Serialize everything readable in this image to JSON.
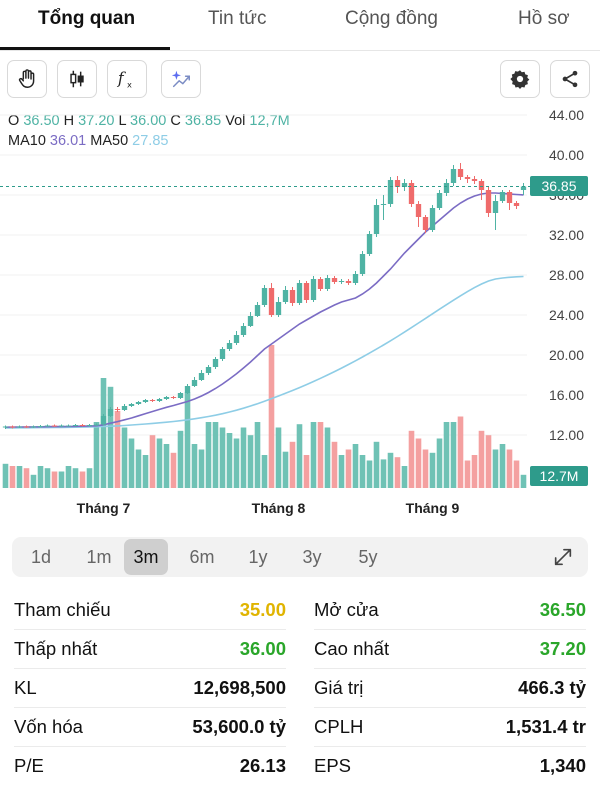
{
  "tabs": [
    "Tổng quan",
    "Tin tức",
    "Cộng đồng",
    "Hồ sơ"
  ],
  "active_tab": "Tổng quan",
  "toolbar": {
    "left": [
      "hand-pointer-icon",
      "candlestick-icon",
      "function-icon",
      "sparkle-chart-icon"
    ],
    "right": [
      "gear-icon",
      "share-icon"
    ]
  },
  "ohlc": {
    "o_label": "O",
    "o": "36.50",
    "h_label": "H",
    "h": "37.20",
    "l_label": "L",
    "l": "36.00",
    "c_label": "C",
    "c": "36.85",
    "vol_label": "Vol",
    "vol": "12,7M"
  },
  "ma": {
    "ma10_label": "MA10",
    "ma10": "36.01",
    "ma50_label": "MA50",
    "ma50": "27.85"
  },
  "price_tag": "36.85",
  "volume_tag": "12.7M",
  "ranges": [
    "1d",
    "1m",
    "3m",
    "6m",
    "1y",
    "3y",
    "5y"
  ],
  "active_range": "3m",
  "expand_icon": "expand-arrows-icon",
  "stats_left": [
    {
      "label": "Tham chiếu",
      "value": "35.00",
      "color": "#e0b400"
    },
    {
      "label": "Thấp nhất",
      "value": "36.00",
      "color": "#2aa62a"
    },
    {
      "label": "KL",
      "value": "12,698,500",
      "color": "#111111"
    },
    {
      "label": "Vốn hóa",
      "value": "53,600.0 tỷ",
      "color": "#111111"
    },
    {
      "label": "P/E",
      "value": "26.13",
      "color": "#111111"
    }
  ],
  "stats_right": [
    {
      "label": "Mở cửa",
      "value": "36.50",
      "color": "#2aa62a"
    },
    {
      "label": "Cao nhất",
      "value": "37.20",
      "color": "#2aa62a"
    },
    {
      "label": "Giá trị",
      "value": "466.3 tỷ",
      "color": "#111111"
    },
    {
      "label": "CPLH",
      "value": "1,531.4 tr",
      "color": "#111111"
    },
    {
      "label": "EPS",
      "value": "1,340",
      "color": "#111111"
    }
  ],
  "colors": {
    "up": "#4fb3a4",
    "down": "#ef6b6b",
    "up_volume": "#6fc2b5",
    "down_volume": "#f4a0a0",
    "ma10": "#7b6cc4",
    "ma50": "#8ecde6",
    "price_line": "#2e9b8b"
  },
  "chart_data": {
    "type": "candlestick",
    "y_ticks": [
      "44.00",
      "40.00",
      "36.00",
      "32.00",
      "28.00",
      "24.00",
      "20.00",
      "16.00",
      "12.00"
    ],
    "ylim": [
      10,
      45
    ],
    "x_ticks": [
      {
        "label": "Tháng 7",
        "index": 14
      },
      {
        "label": "Tháng 8",
        "index": 39
      },
      {
        "label": "Tháng 9",
        "index": 61
      }
    ],
    "last_price": 36.85,
    "candles": [
      {
        "o": 12.75,
        "c": 12.85,
        "h": 12.95,
        "l": 12.6,
        "v": 0.22
      },
      {
        "o": 12.85,
        "c": 12.8,
        "h": 12.95,
        "l": 12.65,
        "v": 0.2
      },
      {
        "o": 12.8,
        "c": 12.85,
        "h": 12.95,
        "l": 12.7,
        "v": 0.2
      },
      {
        "o": 12.85,
        "c": 12.8,
        "h": 12.95,
        "l": 12.7,
        "v": 0.18
      },
      {
        "o": 12.8,
        "c": 12.85,
        "h": 12.95,
        "l": 12.7,
        "v": 0.12
      },
      {
        "o": 12.85,
        "c": 12.9,
        "h": 13.0,
        "l": 12.75,
        "v": 0.2
      },
      {
        "o": 12.9,
        "c": 12.95,
        "h": 13.05,
        "l": 12.8,
        "v": 0.18
      },
      {
        "o": 12.95,
        "c": 12.9,
        "h": 13.05,
        "l": 12.8,
        "v": 0.15
      },
      {
        "o": 12.9,
        "c": 12.95,
        "h": 13.05,
        "l": 12.8,
        "v": 0.15
      },
      {
        "o": 12.95,
        "c": 12.95,
        "h": 13.05,
        "l": 12.85,
        "v": 0.2
      },
      {
        "o": 12.95,
        "c": 13.0,
        "h": 13.1,
        "l": 12.85,
        "v": 0.18
      },
      {
        "o": 13.0,
        "c": 12.95,
        "h": 13.1,
        "l": 12.85,
        "v": 0.15
      },
      {
        "o": 12.95,
        "c": 13.0,
        "h": 13.1,
        "l": 12.85,
        "v": 0.18
      },
      {
        "o": 13.0,
        "c": 13.05,
        "h": 13.15,
        "l": 12.9,
        "v": 0.6
      },
      {
        "o": 13.05,
        "c": 13.9,
        "h": 14.1,
        "l": 12.95,
        "v": 1.0
      },
      {
        "o": 13.9,
        "c": 14.6,
        "h": 14.8,
        "l": 13.8,
        "v": 0.92
      },
      {
        "o": 14.6,
        "c": 14.5,
        "h": 14.8,
        "l": 14.3,
        "v": 0.7
      },
      {
        "o": 14.5,
        "c": 14.9,
        "h": 15.1,
        "l": 14.4,
        "v": 0.55
      },
      {
        "o": 14.9,
        "c": 15.1,
        "h": 15.2,
        "l": 14.8,
        "v": 0.45
      },
      {
        "o": 15.1,
        "c": 15.3,
        "h": 15.4,
        "l": 15.0,
        "v": 0.35
      },
      {
        "o": 15.3,
        "c": 15.5,
        "h": 15.6,
        "l": 15.2,
        "v": 0.3
      },
      {
        "o": 15.5,
        "c": 15.4,
        "h": 15.6,
        "l": 15.3,
        "v": 0.48
      },
      {
        "o": 15.4,
        "c": 15.6,
        "h": 15.7,
        "l": 15.3,
        "v": 0.45
      },
      {
        "o": 15.6,
        "c": 15.8,
        "h": 15.9,
        "l": 15.5,
        "v": 0.4
      },
      {
        "o": 15.8,
        "c": 15.7,
        "h": 15.9,
        "l": 15.6,
        "v": 0.32
      },
      {
        "o": 15.7,
        "c": 16.2,
        "h": 16.3,
        "l": 15.6,
        "v": 0.52
      },
      {
        "o": 16.2,
        "c": 16.9,
        "h": 17.1,
        "l": 16.1,
        "v": 0.87
      },
      {
        "o": 16.9,
        "c": 17.5,
        "h": 17.8,
        "l": 16.8,
        "v": 0.4
      },
      {
        "o": 17.5,
        "c": 18.2,
        "h": 18.5,
        "l": 17.4,
        "v": 0.35
      },
      {
        "o": 18.2,
        "c": 18.8,
        "h": 19.0,
        "l": 18.0,
        "v": 0.6
      },
      {
        "o": 18.8,
        "c": 19.6,
        "h": 19.8,
        "l": 18.6,
        "v": 0.6
      },
      {
        "o": 19.6,
        "c": 20.6,
        "h": 20.8,
        "l": 19.4,
        "v": 0.55
      },
      {
        "o": 20.6,
        "c": 21.2,
        "h": 21.5,
        "l": 20.4,
        "v": 0.5
      },
      {
        "o": 21.2,
        "c": 22.0,
        "h": 22.4,
        "l": 21.0,
        "v": 0.45
      },
      {
        "o": 22.0,
        "c": 22.9,
        "h": 23.2,
        "l": 21.8,
        "v": 0.55
      },
      {
        "o": 22.9,
        "c": 23.9,
        "h": 24.3,
        "l": 22.8,
        "v": 0.48
      },
      {
        "o": 23.9,
        "c": 25.0,
        "h": 25.3,
        "l": 23.8,
        "v": 0.6
      },
      {
        "o": 25.0,
        "c": 26.7,
        "h": 27.0,
        "l": 24.8,
        "v": 0.3
      },
      {
        "o": 26.7,
        "c": 24.0,
        "h": 27.2,
        "l": 23.8,
        "v": 1.3
      },
      {
        "o": 24.0,
        "c": 25.3,
        "h": 25.8,
        "l": 23.8,
        "v": 0.55
      },
      {
        "o": 25.3,
        "c": 26.5,
        "h": 26.9,
        "l": 25.1,
        "v": 0.33
      },
      {
        "o": 26.5,
        "c": 25.2,
        "h": 26.8,
        "l": 24.9,
        "v": 0.42
      },
      {
        "o": 25.2,
        "c": 27.2,
        "h": 27.5,
        "l": 25.0,
        "v": 0.58
      },
      {
        "o": 27.2,
        "c": 25.5,
        "h": 27.4,
        "l": 25.2,
        "v": 0.3
      },
      {
        "o": 25.5,
        "c": 27.6,
        "h": 27.9,
        "l": 25.3,
        "v": 0.6
      },
      {
        "o": 27.6,
        "c": 26.6,
        "h": 27.8,
        "l": 26.4,
        "v": 0.6
      },
      {
        "o": 26.6,
        "c": 27.7,
        "h": 28.0,
        "l": 26.4,
        "v": 0.55
      },
      {
        "o": 27.7,
        "c": 27.3,
        "h": 27.9,
        "l": 27.1,
        "v": 0.42
      },
      {
        "o": 27.3,
        "c": 27.4,
        "h": 27.6,
        "l": 27.1,
        "v": 0.3
      },
      {
        "o": 27.4,
        "c": 27.2,
        "h": 27.6,
        "l": 27.0,
        "v": 0.35
      },
      {
        "o": 27.2,
        "c": 28.1,
        "h": 28.4,
        "l": 27.0,
        "v": 0.4
      },
      {
        "o": 28.1,
        "c": 30.1,
        "h": 30.4,
        "l": 27.9,
        "v": 0.3
      },
      {
        "o": 30.1,
        "c": 32.1,
        "h": 32.4,
        "l": 29.9,
        "v": 0.25
      },
      {
        "o": 32.1,
        "c": 35.0,
        "h": 35.6,
        "l": 31.8,
        "v": 0.42
      },
      {
        "o": 35.0,
        "c": 35.1,
        "h": 36.0,
        "l": 33.5,
        "v": 0.26
      },
      {
        "o": 35.1,
        "c": 37.5,
        "h": 37.8,
        "l": 34.8,
        "v": 0.32
      },
      {
        "o": 37.5,
        "c": 36.8,
        "h": 37.9,
        "l": 36.2,
        "v": 0.28
      },
      {
        "o": 36.8,
        "c": 37.2,
        "h": 37.6,
        "l": 36.4,
        "v": 0.2
      },
      {
        "o": 37.2,
        "c": 35.1,
        "h": 37.5,
        "l": 34.8,
        "v": 0.52
      },
      {
        "o": 35.1,
        "c": 33.8,
        "h": 35.4,
        "l": 32.8,
        "v": 0.45
      },
      {
        "o": 33.8,
        "c": 32.5,
        "h": 34.0,
        "l": 32.2,
        "v": 0.35
      },
      {
        "o": 32.5,
        "c": 34.7,
        "h": 35.0,
        "l": 32.3,
        "v": 0.32
      },
      {
        "o": 34.7,
        "c": 36.2,
        "h": 36.5,
        "l": 34.5,
        "v": 0.45
      },
      {
        "o": 36.2,
        "c": 37.2,
        "h": 37.6,
        "l": 35.9,
        "v": 0.6
      },
      {
        "o": 37.2,
        "c": 38.6,
        "h": 39.0,
        "l": 36.9,
        "v": 0.6
      },
      {
        "o": 38.6,
        "c": 37.8,
        "h": 39.2,
        "l": 37.5,
        "v": 0.65
      },
      {
        "o": 37.8,
        "c": 37.6,
        "h": 38.0,
        "l": 37.2,
        "v": 0.25
      },
      {
        "o": 37.6,
        "c": 37.4,
        "h": 37.9,
        "l": 37.1,
        "v": 0.3
      },
      {
        "o": 37.4,
        "c": 36.5,
        "h": 37.6,
        "l": 35.5,
        "v": 0.52
      },
      {
        "o": 36.5,
        "c": 34.2,
        "h": 36.8,
        "l": 33.8,
        "v": 0.48
      },
      {
        "o": 34.2,
        "c": 35.4,
        "h": 36.0,
        "l": 32.5,
        "v": 0.35
      },
      {
        "o": 35.4,
        "c": 36.3,
        "h": 36.5,
        "l": 35.2,
        "v": 0.4
      },
      {
        "o": 36.3,
        "c": 35.2,
        "h": 36.5,
        "l": 34.5,
        "v": 0.35
      },
      {
        "o": 35.2,
        "c": 34.9,
        "h": 35.4,
        "l": 34.6,
        "v": 0.25
      },
      {
        "o": 36.5,
        "c": 36.85,
        "h": 37.2,
        "l": 36.0,
        "v": 0.12
      }
    ],
    "ma10": [
      12.78,
      12.8,
      12.8,
      12.81,
      12.81,
      12.82,
      12.83,
      12.84,
      12.84,
      12.85,
      12.87,
      12.88,
      12.9,
      12.92,
      13.02,
      13.18,
      13.34,
      13.52,
      13.7,
      13.92,
      14.14,
      14.35,
      14.56,
      14.77,
      14.95,
      15.15,
      15.35,
      15.6,
      15.9,
      16.25,
      16.65,
      17.1,
      17.6,
      18.12,
      18.7,
      19.3,
      19.95,
      20.6,
      21.1,
      21.6,
      22.1,
      22.6,
      23.1,
      23.5,
      23.9,
      24.3,
      24.65,
      25.0,
      25.3,
      25.5,
      25.7,
      26.1,
      26.6,
      27.2,
      27.9,
      28.6,
      29.4,
      30.2,
      30.9,
      31.6,
      32.3,
      32.9,
      33.5,
      34.1,
      34.7,
      35.2,
      35.6,
      35.9,
      36.1,
      36.2,
      36.2,
      36.15,
      36.1,
      36.05,
      36.01
    ],
    "ma50": [
      12.7,
      12.7,
      12.72,
      12.72,
      12.73,
      12.74,
      12.74,
      12.75,
      12.76,
      12.77,
      12.78,
      12.79,
      12.8,
      12.82,
      12.85,
      12.88,
      12.91,
      12.95,
      13.0,
      13.05,
      13.1,
      13.16,
      13.22,
      13.28,
      13.35,
      13.43,
      13.52,
      13.62,
      13.73,
      13.85,
      13.98,
      14.13,
      14.3,
      14.48,
      14.68,
      14.9,
      15.13,
      15.38,
      15.64,
      15.9,
      16.17,
      16.45,
      16.74,
      17.04,
      17.35,
      17.67,
      18.0,
      18.34,
      18.69,
      19.05,
      19.42,
      19.8,
      20.19,
      20.59,
      21.0,
      21.42,
      21.85,
      22.29,
      22.74,
      23.2,
      23.66,
      24.12,
      24.58,
      25.03,
      25.48,
      25.92,
      26.34,
      26.74,
      27.1,
      27.4,
      27.6,
      27.7,
      27.77,
      27.82,
      27.85
    ]
  }
}
